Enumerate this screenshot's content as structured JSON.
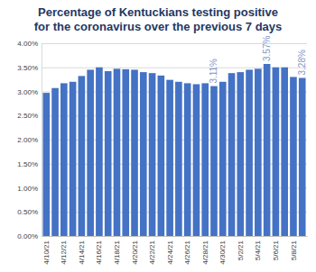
{
  "chart_data": {
    "type": "bar",
    "title": "Percentage of Kentuckians testing positive\nfor the coronavirus over the previous 7 days",
    "categories": [
      "4/10/21",
      null,
      "4/12/21",
      null,
      "4/14/21",
      null,
      "4/16/21",
      null,
      "4/18/21",
      null,
      "4/20/21",
      null,
      "4/22/21",
      null,
      "4/24/21",
      null,
      "4/26/21",
      null,
      "4/28/21",
      null,
      "4/30/21",
      null,
      "5/2/21",
      null,
      "5/4/21",
      null,
      "5/6/21",
      null,
      "5/8/21",
      null
    ],
    "values": [
      2.97,
      3.07,
      3.17,
      3.2,
      3.32,
      3.45,
      3.5,
      3.42,
      3.47,
      3.46,
      3.45,
      3.4,
      3.38,
      3.33,
      3.24,
      3.2,
      3.17,
      3.15,
      3.17,
      3.11,
      3.2,
      3.38,
      3.4,
      3.45,
      3.47,
      3.57,
      3.5,
      3.5,
      3.3,
      3.28
    ],
    "value_labels": [
      null,
      null,
      null,
      null,
      null,
      null,
      null,
      null,
      null,
      null,
      null,
      null,
      null,
      null,
      null,
      null,
      null,
      null,
      null,
      "3.11%",
      null,
      null,
      null,
      null,
      null,
      "3.57%",
      null,
      null,
      null,
      "3.28%"
    ],
    "color": "#4472c4",
    "ylim": [
      0,
      4
    ],
    "yticks": [
      {
        "value": 0,
        "label": "0.00%"
      },
      {
        "value": 0.5,
        "label": "0.50%"
      },
      {
        "value": 1,
        "label": "1.00%"
      },
      {
        "value": 1.5,
        "label": "1.50%"
      },
      {
        "value": 2,
        "label": "2.00%"
      },
      {
        "value": 2.5,
        "label": "2.50%"
      },
      {
        "value": 3,
        "label": "3.00%"
      },
      {
        "value": 3.5,
        "label": "3.50%"
      },
      {
        "value": 4,
        "label": "4.00%"
      }
    ],
    "grid": true
  }
}
